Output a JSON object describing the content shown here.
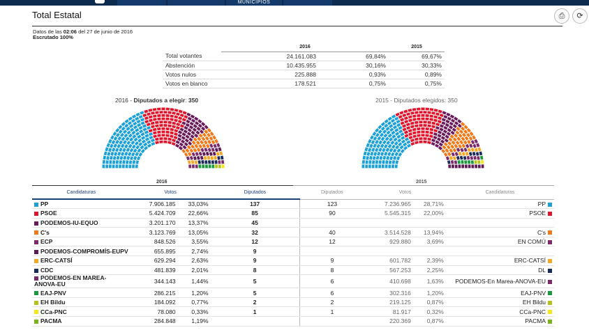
{
  "topbar": {
    "tab_municipios": "MUNICIPIOS"
  },
  "header": {
    "title": "Total Estatal",
    "datos_prefix": "Datos de las",
    "time": "02:06",
    "datos_suffix": "del 27 de junio de 2016",
    "escrutado": "Escrutado 100%"
  },
  "summary": {
    "year_2016": "2016",
    "year_2015": "2015",
    "rows": [
      {
        "label": "Total votantes",
        "votes": "24.161.083",
        "pct2016": "69,84%",
        "pct2015": "69,67%"
      },
      {
        "label": "Abstención",
        "votes": "10.435.955",
        "pct2016": "30,16%",
        "pct2015": "30,33%"
      },
      {
        "label": "Votos nulos",
        "votes": "225.888",
        "pct2016": "0,93%",
        "pct2015": "0,89%"
      },
      {
        "label": "Votos en blanco",
        "votes": "178.521",
        "pct2016": "0,75%",
        "pct2015": "0,75%"
      }
    ]
  },
  "parliament": {
    "left": {
      "year": "2016",
      "label": "Diputados a elegir",
      "seats": "350"
    },
    "right": {
      "year": "2015",
      "label": "Diputados elegidos",
      "seats": "350"
    }
  },
  "main_table": {
    "year_2016": "2016",
    "year_2015": "2015",
    "col_candidaturas": "Candidaturas",
    "col_votos": "Votos",
    "col_diputados": "Diputados",
    "rows": [
      {
        "party": "PP",
        "color": "#1ba1d8",
        "votes": "7.906.185",
        "pct": "33,03%",
        "seats": "137",
        "seats15": "123",
        "votes15": "7.236.965",
        "pct15": "28,71%",
        "party15": "PP",
        "color15": "#1ba1d8"
      },
      {
        "party": "PSOE",
        "color": "#e0142a",
        "votes": "5.424.709",
        "pct": "22,66%",
        "seats": "85",
        "seats15": "90",
        "votes15": "5.545.315",
        "pct15": "22,00%",
        "party15": "PSOE",
        "color15": "#e0142a"
      },
      {
        "party": "PODEMOS-IU-EQUO",
        "color": "#6b1a5b",
        "votes": "3.201.170",
        "pct": "13,37%",
        "seats": "45",
        "seats15": "",
        "votes15": "",
        "pct15": "",
        "party15": "",
        "color15": ""
      },
      {
        "party": "C's",
        "color": "#f07a1a",
        "votes": "3.123.769",
        "pct": "13,05%",
        "seats": "32",
        "seats15": "40",
        "votes15": "3.514.528",
        "pct15": "13,94%",
        "party15": "C's",
        "color15": "#f07a1a"
      },
      {
        "party": "ECP",
        "color": "#7a2a6a",
        "votes": "848.526",
        "pct": "3,55%",
        "seats": "12",
        "seats15": "12",
        "votes15": "929.880",
        "pct15": "3,69%",
        "party15": "EN COMÚ",
        "color15": "#7a2a6a"
      },
      {
        "party": "PODEMOS-COMPROMÍS-EUPV",
        "color": "#5e1a54",
        "votes": "655.895",
        "pct": "2,74%",
        "seats": "9",
        "seats15": "",
        "votes15": "",
        "pct15": "",
        "party15": "",
        "color15": ""
      },
      {
        "party": "ERC-CATSÍ",
        "color": "#f5a623",
        "votes": "629.294",
        "pct": "2,63%",
        "seats": "9",
        "seats15": "9",
        "votes15": "601.782",
        "pct15": "2,39%",
        "party15": "ERC-CATSÍ",
        "color15": "#f5a623"
      },
      {
        "party": "CDC",
        "color": "#1a2a5a",
        "votes": "481.839",
        "pct": "2,01%",
        "seats": "8",
        "seats15": "8",
        "votes15": "567.253",
        "pct15": "2,25%",
        "party15": "DL",
        "color15": "#1a2a5a"
      },
      {
        "party": "PODEMOS-EN MAREA-ANOVA-EU",
        "color": "#7a2a6a",
        "votes": "344.143",
        "pct": "1,44%",
        "seats": "5",
        "seats15": "6",
        "votes15": "410.698",
        "pct15": "1,63%",
        "party15": "PODEMOS-En Marea-ANOVA-EU",
        "color15": "#7a2a6a"
      },
      {
        "party": "EAJ-PNV",
        "color": "#1a9a3a",
        "votes": "286.215",
        "pct": "1,20%",
        "seats": "5",
        "seats15": "6",
        "votes15": "302.316",
        "pct15": "1,20%",
        "party15": "EAJ-PNV",
        "color15": "#1a9a3a"
      },
      {
        "party": "EH Bildu",
        "color": "#b5c21a",
        "votes": "184.092",
        "pct": "0,77%",
        "seats": "2",
        "seats15": "2",
        "votes15": "219.125",
        "pct15": "0,87%",
        "party15": "EH Bildu",
        "color15": "#b5c21a"
      },
      {
        "party": "CCa-PNC",
        "color": "#f5e61a",
        "votes": "78.080",
        "pct": "0,33%",
        "seats": "1",
        "seats15": "1",
        "votes15": "81.917",
        "pct15": "0,32%",
        "party15": "CCa-PNC",
        "color15": "#f5e61a"
      },
      {
        "party": "PACMA",
        "color": "#7ab51a",
        "votes": "284.848",
        "pct": "1,19%",
        "seats": "",
        "seats15": "",
        "votes15": "220.369",
        "pct15": "0,87%",
        "party15": "PACMA",
        "color15": "#7ab51a"
      }
    ]
  }
}
